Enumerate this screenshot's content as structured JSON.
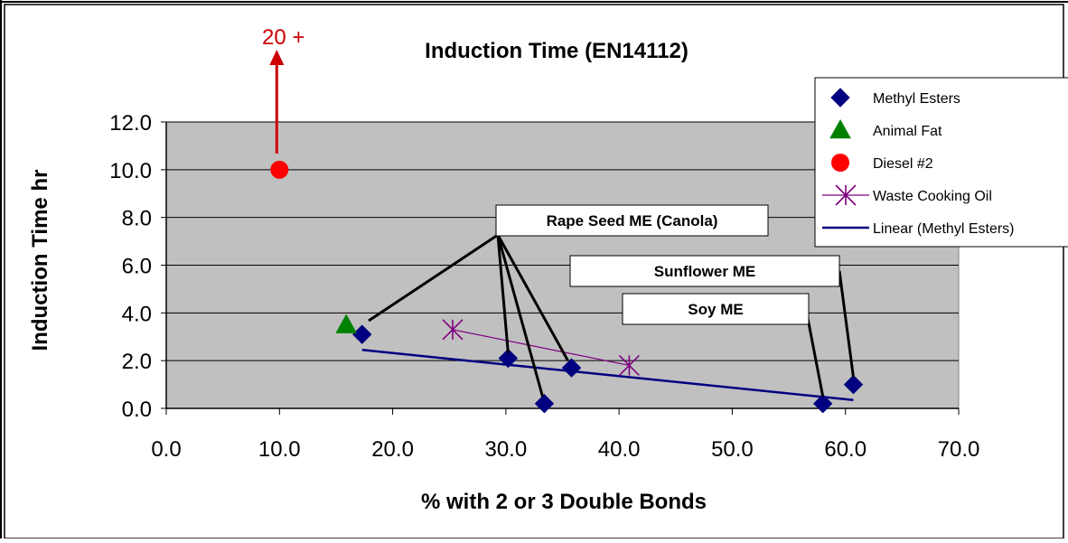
{
  "chart_data": {
    "type": "scatter",
    "title": "Induction Time (EN14112)",
    "xlabel": "% with 2 or 3 Double Bonds",
    "ylabel": "Induction Time hr",
    "xlim": [
      0,
      70
    ],
    "ylim": [
      0,
      12
    ],
    "x_ticks": [
      "0.0",
      "10.0",
      "20.0",
      "30.0",
      "40.0",
      "50.0",
      "60.0",
      "70.0"
    ],
    "y_ticks": [
      "0.0",
      "2.0",
      "4.0",
      "6.0",
      "8.0",
      "10.0",
      "12.0"
    ],
    "grid": "horizontal",
    "legend_position": "right",
    "series": [
      {
        "name": "Methyl Esters",
        "marker": "diamond",
        "color": "#000080",
        "points": [
          {
            "x": 17.3,
            "y": 3.1
          },
          {
            "x": 30.2,
            "y": 2.1
          },
          {
            "x": 33.4,
            "y": 0.2
          },
          {
            "x": 35.8,
            "y": 1.7
          },
          {
            "x": 58.0,
            "y": 0.2
          },
          {
            "x": 60.7,
            "y": 1.0
          }
        ]
      },
      {
        "name": "Animal Fat",
        "marker": "triangle",
        "color": "#008000",
        "points": [
          {
            "x": 15.9,
            "y": 3.5
          }
        ]
      },
      {
        "name": "Diesel #2",
        "marker": "circle",
        "color": "#ff0000",
        "points": [
          {
            "x": 10.0,
            "y": 10.0
          }
        ]
      },
      {
        "name": "Waste Cooking Oil",
        "marker": "asterisk",
        "color": "#800080",
        "line": true,
        "points": [
          {
            "x": 25.3,
            "y": 3.3
          },
          {
            "x": 40.9,
            "y": 1.8
          }
        ]
      },
      {
        "name": "Linear (Methyl Esters)",
        "marker": "none",
        "color": "#000080",
        "line": true,
        "points": [
          {
            "x": 17.3,
            "y": 2.45
          },
          {
            "x": 60.7,
            "y": 0.35
          }
        ]
      }
    ],
    "annotations": [
      {
        "text": "Rape Seed ME (Canola)"
      },
      {
        "text": "Sunflower ME"
      },
      {
        "text": "Soy ME"
      },
      {
        "text": "20 +",
        "color": "#cc0000"
      }
    ]
  }
}
